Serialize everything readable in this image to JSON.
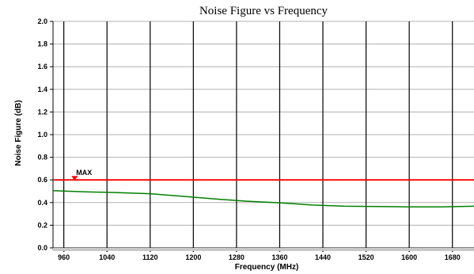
{
  "chart_data": {
    "type": "line",
    "title": "Noise Figure vs Frequency",
    "xlabel": "Frequency (MHz)",
    "ylabel": "Noise Figure (dB)",
    "xlim": [
      940,
      1720
    ],
    "ylim": [
      0.0,
      2.0
    ],
    "x_ticks": [
      960,
      1040,
      1120,
      1200,
      1280,
      1360,
      1440,
      1520,
      1600,
      1680
    ],
    "x_tick_labels": [
      "960",
      "1040",
      "1120",
      "1200",
      "1280",
      "1360",
      "1440",
      "1520",
      "1600",
      "1680"
    ],
    "y_ticks": [
      0.0,
      0.2,
      0.4,
      0.6,
      0.8,
      1.0,
      1.2,
      1.4,
      1.6,
      1.8,
      2.0
    ],
    "y_tick_labels": [
      "0.0",
      "0.2",
      "0.4",
      "0.6",
      "0.8",
      "1.0",
      "1.2",
      "1.4",
      "1.6",
      "1.8",
      "2.0"
    ],
    "grid": true,
    "series": [
      {
        "color": "#008000",
        "x": [
          940,
          1000,
          1060,
          1120,
          1180,
          1240,
          1300,
          1360,
          1420,
          1480,
          1540,
          1600,
          1660,
          1720
        ],
        "y": [
          0.505,
          0.495,
          0.488,
          0.478,
          0.455,
          0.432,
          0.412,
          0.398,
          0.378,
          0.368,
          0.365,
          0.362,
          0.362,
          0.368
        ]
      }
    ],
    "limit_line": {
      "label": "MAX",
      "value": 0.6,
      "color": "#ff0000",
      "marker_x": 980
    }
  }
}
